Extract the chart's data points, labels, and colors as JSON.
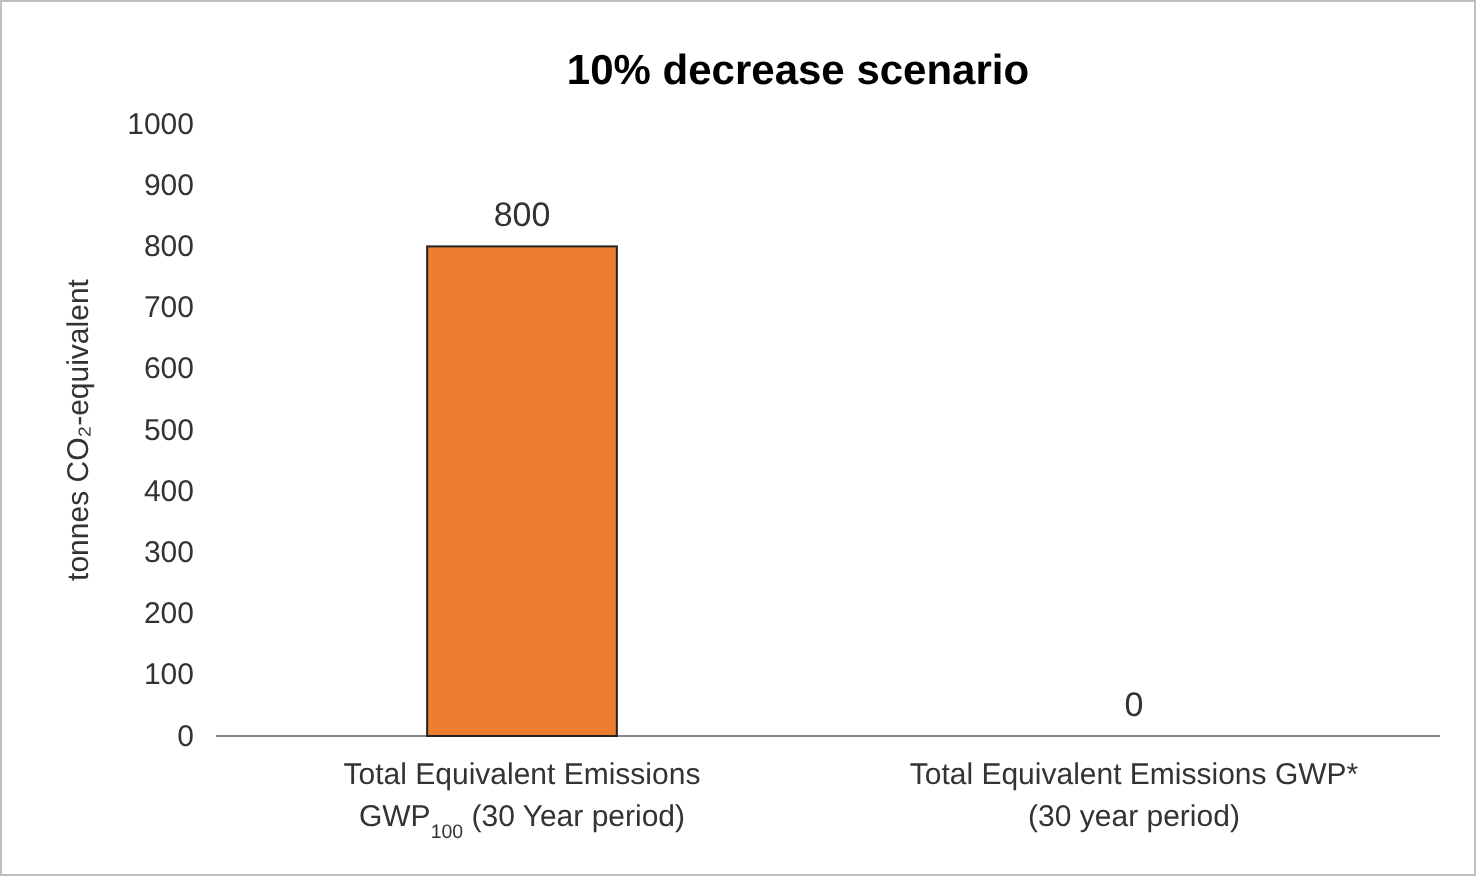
{
  "chart_data": {
    "type": "bar",
    "title": "10% decrease scenario",
    "ylabel": "tonnes CO₂-equivalent",
    "categories": [
      "Total Equivalent Emissions GWP$_{100}$ (30 Year period)",
      "Total Equivalent Emissions GWP* (30 year period)"
    ],
    "values": [
      800,
      0
    ],
    "color": "#ed7d31",
    "ylim": [
      0,
      1000
    ],
    "yticks": [
      0,
      100,
      200,
      300,
      400,
      500,
      600,
      700,
      800,
      900,
      1000
    ],
    "grid": false,
    "data_labels": true
  }
}
